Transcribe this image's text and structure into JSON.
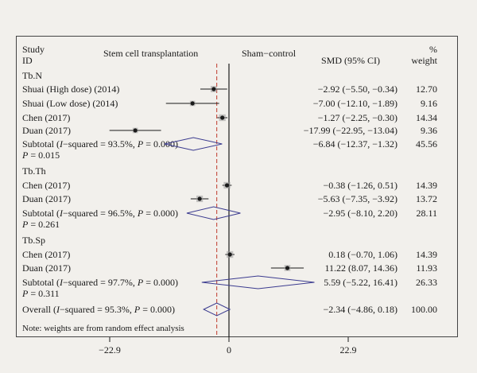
{
  "chart_data": {
    "type": "forest",
    "header": {
      "study": "Study",
      "id": "ID",
      "left_group": "Stem cell transplantation",
      "right_group": "Sham−control",
      "smd": "SMD (95% CI)",
      "pct": "%",
      "weight": "weight"
    },
    "x_ticks": [
      {
        "value": -22.9,
        "label": "−22.9"
      },
      {
        "value": 0,
        "label": "0"
      },
      {
        "value": 22.9,
        "label": "22.9"
      }
    ],
    "xlim": [
      -29,
      30
    ],
    "overall_effect": -2.34,
    "groups": [
      {
        "name": "Tb.N",
        "studies": [
          {
            "label": "Shuai (High dose) (2014)",
            "smd": -2.92,
            "lo": -5.5,
            "hi": -0.34,
            "ci_text": "−2.92 (−5.50, −0.34)",
            "weight": "12.70"
          },
          {
            "label": "Shuai (Low dose) (2014)",
            "smd": -7.0,
            "lo": -12.1,
            "hi": -1.89,
            "ci_text": "−7.00 (−12.10, −1.89)",
            "weight": "9.16"
          },
          {
            "label": "Chen (2017)",
            "smd": -1.27,
            "lo": -2.25,
            "hi": -0.3,
            "ci_text": "−1.27 (−2.25, −0.30)",
            "weight": "14.34"
          },
          {
            "label": "Duan (2017)",
            "smd": -17.99,
            "lo": -22.95,
            "hi": -13.04,
            "ci_text": "−17.99 (−22.95, −13.04)",
            "weight": "9.36"
          }
        ],
        "subtotal": {
          "label_pre": "Subtotal (",
          "label_i": "I",
          "label_mid": "−squared = 93.5%, ",
          "label_p": "P",
          "label_post": " = 0.000)",
          "p_i": "P",
          "p_rest": " = 0.015",
          "smd": -6.84,
          "lo": -12.37,
          "hi": -1.32,
          "ci_text": "−6.84 (−12.37, −1.32)",
          "weight": "45.56"
        }
      },
      {
        "name": "Tb.Th",
        "studies": [
          {
            "label": "Chen (2017)",
            "smd": -0.38,
            "lo": -1.26,
            "hi": 0.51,
            "ci_text": "−0.38 (−1.26, 0.51)",
            "weight": "14.39"
          },
          {
            "label": "Duan (2017)",
            "smd": -5.63,
            "lo": -7.35,
            "hi": -3.92,
            "ci_text": "−5.63 (−7.35, −3.92)",
            "weight": "13.72"
          }
        ],
        "subtotal": {
          "label_pre": "Subtotal (",
          "label_i": "I",
          "label_mid": "−squared = 96.5%, ",
          "label_p": "P",
          "label_post": " = 0.000)",
          "p_i": "P",
          "p_rest": " = 0.261",
          "smd": -2.95,
          "lo": -8.1,
          "hi": 2.2,
          "ci_text": "−2.95 (−8.10, 2.20)",
          "weight": "28.11"
        }
      },
      {
        "name": "Tb.Sp",
        "studies": [
          {
            "label": "Chen (2017)",
            "smd": 0.18,
            "lo": -0.7,
            "hi": 1.06,
            "ci_text": "0.18 (−0.70, 1.06)",
            "weight": "14.39"
          },
          {
            "label": "Duan (2017)",
            "smd": 11.22,
            "lo": 8.07,
            "hi": 14.36,
            "ci_text": "11.22 (8.07, 14.36)",
            "weight": "11.93"
          }
        ],
        "subtotal": {
          "label_pre": "Subtotal (",
          "label_i": "I",
          "label_mid": "−squared = 97.7%, ",
          "label_p": "P",
          "label_post": " = 0.000)",
          "p_i": "P",
          "p_rest": " = 0.311",
          "smd": 5.59,
          "lo": -5.22,
          "hi": 16.41,
          "ci_text": "5.59 (−5.22, 16.41)",
          "weight": "26.33"
        }
      }
    ],
    "overall": {
      "label_pre": "Overall (",
      "label_i": "I",
      "label_mid": "−squared = 95.3%, ",
      "label_p": "P",
      "label_post": " = 0.000)",
      "smd": -2.34,
      "lo": -4.86,
      "hi": 0.18,
      "ci_text": "−2.34 (−4.86, 0.18)",
      "weight": "100.00"
    },
    "note": "Note: weights are from random effect analysis",
    "colors": {
      "background": "#f2f0ec",
      "ink": "#1a1a1a",
      "diamond": "#3b3b8f",
      "reference_line": "#c0392b",
      "box_fill": "#9a9a9a"
    }
  }
}
